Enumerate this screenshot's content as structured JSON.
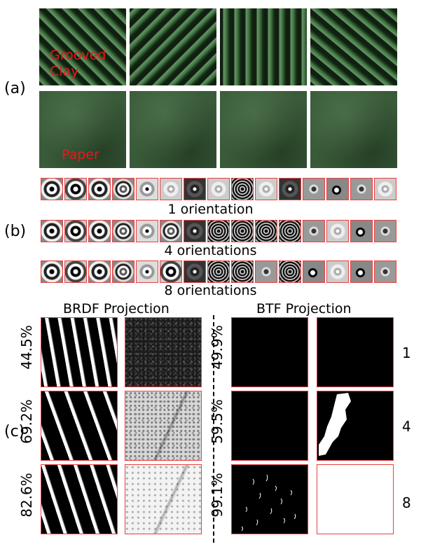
{
  "panel_labels": {
    "a": "(a)",
    "b": "(b)",
    "c": "(c)"
  },
  "section_a": {
    "clay_label": "Grooved\nClay",
    "paper_label": "Paper"
  },
  "section_b": {
    "strip_labels": [
      "1 orientation",
      "4 orientations",
      "8 orientations"
    ]
  },
  "section_c": {
    "brdf_title": "BRDF Projection",
    "btf_title": "BTF Projection",
    "brdf_percentages": [
      "44.5%",
      "69.2%",
      "82.6%"
    ],
    "btf_percentages": [
      "49.9%",
      "59.5%",
      "99.1%"
    ],
    "orientation_numbers": [
      "1",
      "4",
      "8"
    ]
  },
  "colors": {
    "label_red": "#e61b1b",
    "border_red": "#e84040",
    "tile_green": "#2f5a30"
  }
}
